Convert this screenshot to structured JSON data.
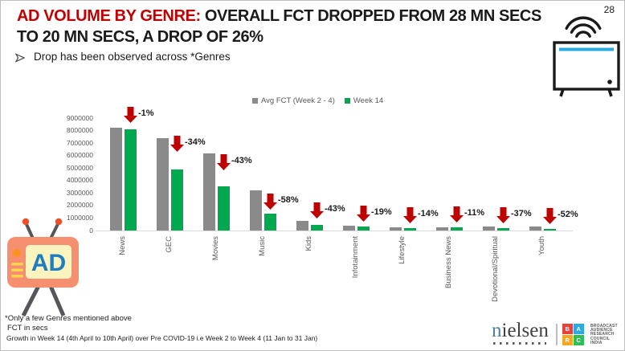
{
  "slide": {
    "page_number": "28"
  },
  "title": {
    "red_text": "AD VOLUME BY GENRE:",
    "black_text": " OVERALL FCT DROPPED FROM 28 MN SECS",
    "line2": "TO 20 MN SECS, A DROP OF 26%"
  },
  "bullet": {
    "text": "Drop has been observed across *Genres"
  },
  "chart_data": {
    "type": "bar",
    "title": "",
    "xlabel": "",
    "ylabel": "",
    "categories": [
      "News",
      "GEC",
      "Movies",
      "Music",
      "Kids",
      "Infotainment",
      "Lifestyle",
      "Business News",
      "Devotional/Spiritual",
      "Youth"
    ],
    "series": [
      {
        "name": "Avg FCT (Week 2 - 4)",
        "color": "#8a8a8a",
        "values": [
          8200000,
          7400000,
          6200000,
          3200000,
          790000,
          400000,
          260000,
          280000,
          320000,
          300000
        ]
      },
      {
        "name": "Week 14",
        "color": "#00a850",
        "values": [
          8100000,
          4900000,
          3550000,
          1350000,
          450000,
          325000,
          225000,
          250000,
          200000,
          145000
        ]
      }
    ],
    "change_labels": [
      "-1%",
      "-34%",
      "-43%",
      "-58%",
      "-43%",
      "-19%",
      "-14%",
      "-11%",
      "-37%",
      "-52%"
    ],
    "ylim": [
      0,
      9000000
    ],
    "ytick_step": 1000000,
    "grid": false,
    "legend_position": "top-center",
    "arrow_color": "#c00000",
    "axis_text_color": "#595959"
  },
  "footnotes": {
    "line1": "*Only a few Genres mentioned above",
    "line2": "FCT in secs",
    "line3": "Growth in Week 14 (4th April to 10th April) over Pre COVID-19 i.e Week 2 to Week 4 (11 Jan to 31 Jan)"
  },
  "branding": {
    "nielsen_first": "n",
    "nielsen_rest": "ielsen",
    "barc": {
      "letters": [
        "B",
        "A",
        "R",
        "C"
      ],
      "colors": [
        "#e8413c",
        "#2ba9e0",
        "#f5a623",
        "#2fbd57"
      ],
      "org_lines": [
        "BROADCAST",
        "AUDIENCE",
        "RESEARCH",
        "COUNCIL",
        "INDIA"
      ]
    }
  },
  "icons": {
    "header_icon": "tv-signal-icon",
    "footer_icon": "ad-tv-icon",
    "ad_text": "AD",
    "tv_screen_line_color": "#29abe2"
  },
  "colors": {
    "title_red": "#c00000"
  }
}
